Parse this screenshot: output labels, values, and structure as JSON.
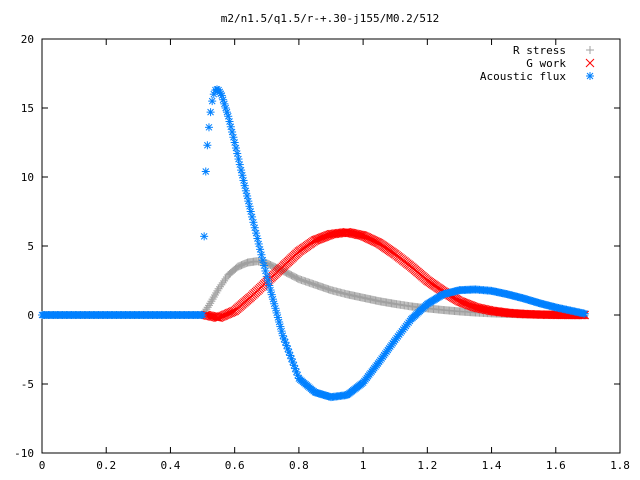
{
  "chart_data": {
    "type": "scatter",
    "title": "m2/n1.5/q1.5/r-+.30-j155/M0.2/512",
    "xlabel": "",
    "ylabel": "",
    "xlim": [
      0,
      1.8
    ],
    "ylim": [
      -10,
      20
    ],
    "xticks": [
      "0",
      "0.2",
      "0.4",
      "0.6",
      "0.8",
      "1",
      "1.2",
      "1.4",
      "1.6",
      "1.8"
    ],
    "yticks": [
      "-10",
      "-5",
      "0",
      "5",
      "10",
      "15",
      "20"
    ],
    "grid": false,
    "legend_position": "top-right",
    "series": [
      {
        "name": "R stress",
        "marker": "plus",
        "color": "#a0a0a0",
        "x": [
          0.0,
          0.1,
          0.2,
          0.3,
          0.4,
          0.5,
          0.52,
          0.55,
          0.58,
          0.61,
          0.64,
          0.67,
          0.7,
          0.75,
          0.8,
          0.85,
          0.9,
          0.95,
          1.0,
          1.05,
          1.1,
          1.15,
          1.2,
          1.25,
          1.3,
          1.35,
          1.4,
          1.45,
          1.5,
          1.55,
          1.6,
          1.65,
          1.69
        ],
        "y": [
          0.0,
          0.0,
          0.0,
          0.0,
          0.0,
          0.0,
          0.7,
          1.9,
          2.9,
          3.5,
          3.8,
          3.9,
          3.75,
          3.2,
          2.6,
          2.2,
          1.8,
          1.5,
          1.25,
          1.0,
          0.8,
          0.62,
          0.48,
          0.36,
          0.26,
          0.18,
          0.12,
          0.08,
          0.05,
          0.03,
          0.02,
          0.01,
          0.0
        ]
      },
      {
        "name": "G work",
        "marker": "cross",
        "color": "#ff0000",
        "x": [
          0.51,
          0.55,
          0.6,
          0.65,
          0.7,
          0.75,
          0.8,
          0.85,
          0.9,
          0.95,
          1.0,
          1.05,
          1.1,
          1.15,
          1.2,
          1.25,
          1.3,
          1.35,
          1.4,
          1.45,
          1.5,
          1.55,
          1.6,
          1.65,
          1.69
        ],
        "y": [
          0.0,
          -0.2,
          0.3,
          1.3,
          2.4,
          3.5,
          4.6,
          5.4,
          5.85,
          6.0,
          5.75,
          5.2,
          4.4,
          3.5,
          2.5,
          1.7,
          1.0,
          0.55,
          0.3,
          0.15,
          0.07,
          0.03,
          0.01,
          0.0,
          0.0
        ]
      },
      {
        "name": "Acoustic flux",
        "marker": "star",
        "color": "#0080ff",
        "x": [
          0.0,
          0.1,
          0.2,
          0.3,
          0.4,
          0.5,
          0.505,
          0.51,
          0.515,
          0.52,
          0.525,
          0.53,
          0.535,
          0.54,
          0.545,
          0.55,
          0.56,
          0.58,
          0.6,
          0.62,
          0.65,
          0.7,
          0.75,
          0.8,
          0.85,
          0.9,
          0.95,
          1.0,
          1.05,
          1.1,
          1.15,
          1.2,
          1.25,
          1.3,
          1.35,
          1.4,
          1.45,
          1.5,
          1.55,
          1.6,
          1.65,
          1.69
        ],
        "y": [
          0.0,
          0.0,
          0.0,
          0.0,
          0.0,
          0.0,
          5.7,
          10.4,
          12.3,
          13.6,
          14.7,
          15.5,
          16.0,
          16.3,
          16.35,
          16.3,
          15.9,
          14.4,
          12.5,
          10.5,
          7.5,
          2.8,
          -1.5,
          -4.6,
          -5.6,
          -5.95,
          -5.8,
          -4.9,
          -3.4,
          -1.8,
          -0.3,
          0.8,
          1.5,
          1.8,
          1.85,
          1.75,
          1.5,
          1.2,
          0.85,
          0.55,
          0.3,
          0.1
        ]
      }
    ]
  }
}
